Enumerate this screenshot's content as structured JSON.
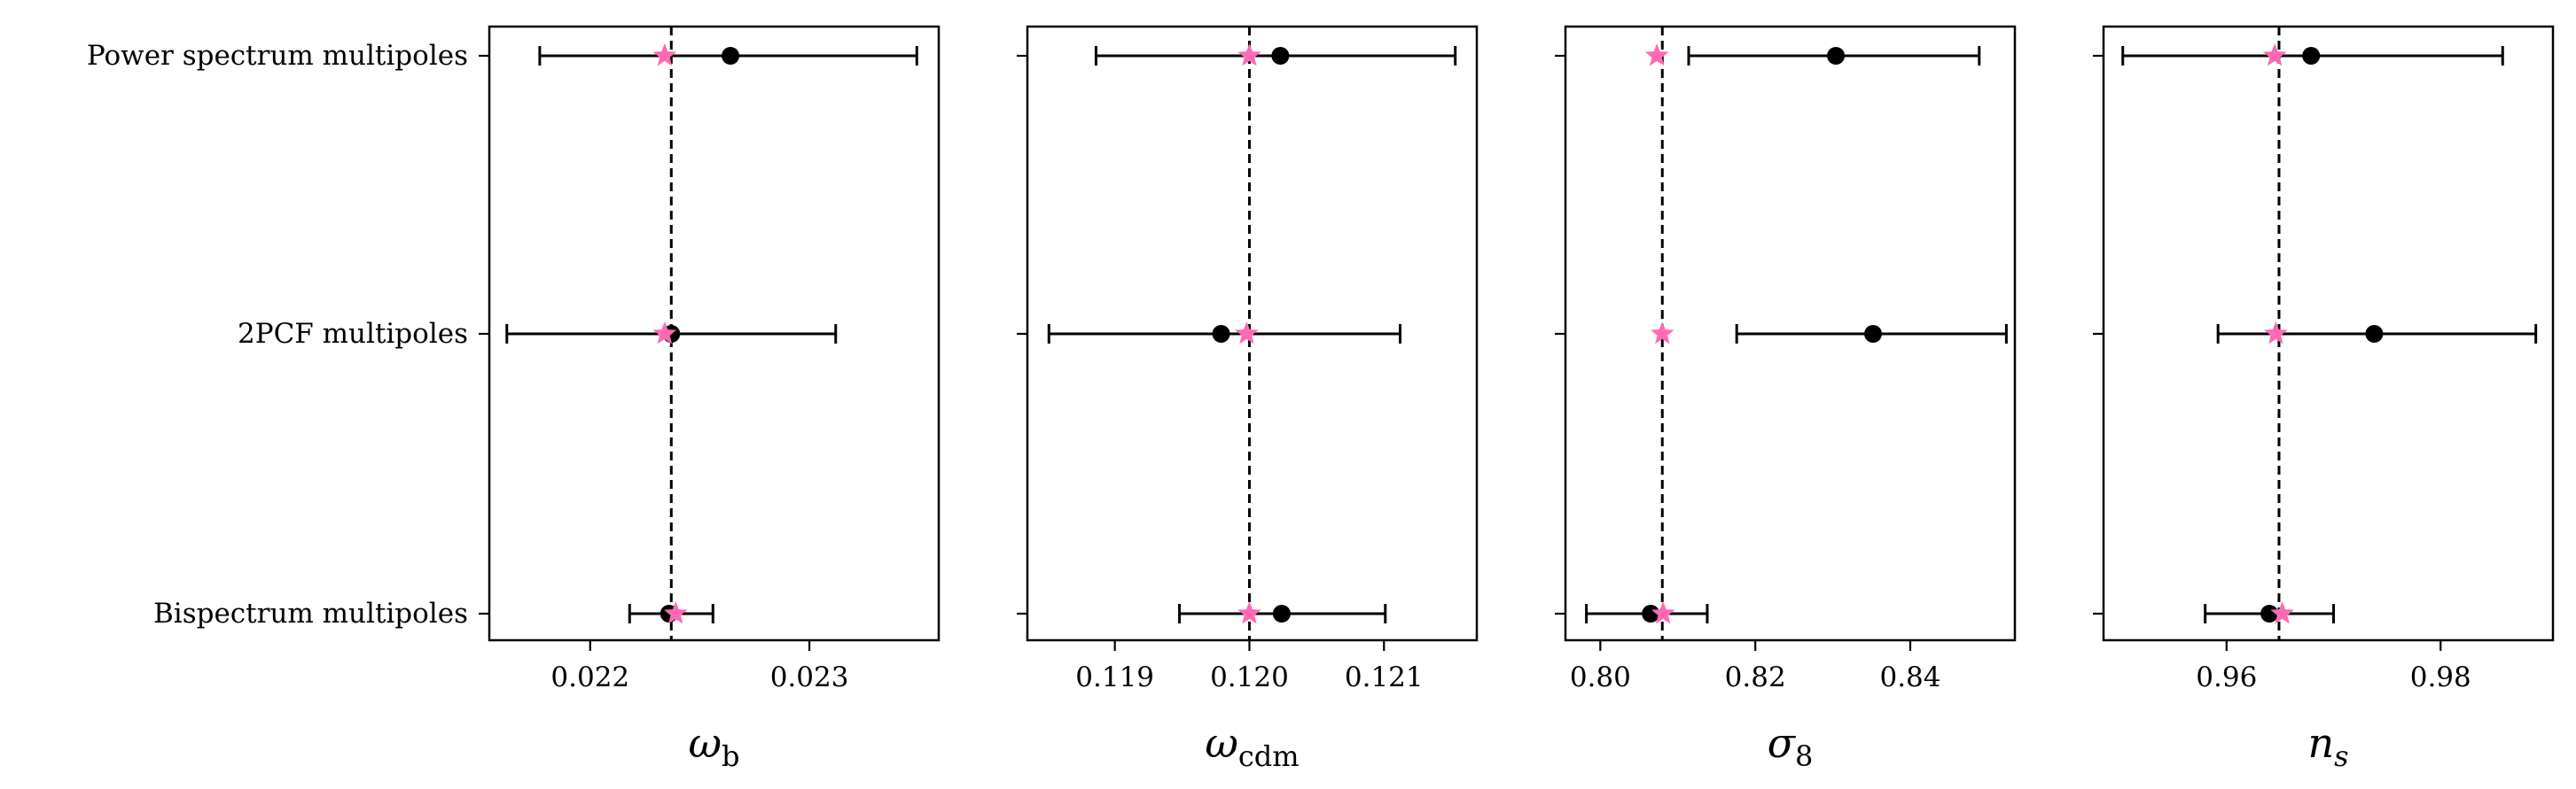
{
  "chart_data": {
    "type": "scatter",
    "categories": [
      "Power spectrum multipoles",
      "2PCF multipoles",
      "Bispectrum multipoles"
    ],
    "colors": {
      "measurement": "#000000",
      "truth": "#ff69b4",
      "fiducial_line": "#000000"
    },
    "panels": [
      {
        "xlabel_base": "ω",
        "xlabel_sub": "b",
        "xlim": [
          0.02154,
          0.02359
        ],
        "xticks": [
          0.022,
          0.023
        ],
        "xtick_labels": [
          "0.022",
          "0.023"
        ],
        "fiducial": 0.02237,
        "measurement": [
          {
            "value": 0.02264,
            "lo": 0.02177,
            "hi": 0.02349
          },
          {
            "value": 0.02237,
            "lo": 0.02162,
            "hi": 0.02312
          },
          {
            "value": 0.02236,
            "lo": 0.02218,
            "hi": 0.02256
          }
        ],
        "truth": [
          0.02234,
          0.02234,
          0.02239
        ]
      },
      {
        "xlabel_base": "ω",
        "xlabel_sub": "cdm",
        "xlim": [
          0.11835,
          0.12169
        ],
        "xticks": [
          0.119,
          0.12,
          0.121
        ],
        "xtick_labels": [
          "0.119",
          "0.120",
          "0.121"
        ],
        "fiducial": 0.12,
        "measurement": [
          {
            "value": 0.12023,
            "lo": 0.11886,
            "hi": 0.12153
          },
          {
            "value": 0.11979,
            "lo": 0.11851,
            "hi": 0.12112
          },
          {
            "value": 0.12024,
            "lo": 0.11948,
            "hi": 0.12101
          }
        ],
        "truth": [
          0.12,
          0.11998,
          0.12
        ]
      },
      {
        "xlabel_base": "σ",
        "xlabel_sub": "8",
        "xlim": [
          0.7955,
          0.8535
        ],
        "xticks": [
          0.8,
          0.82,
          0.84
        ],
        "xtick_labels": [
          "0.80",
          "0.82",
          "0.84"
        ],
        "fiducial": 0.808,
        "measurement": [
          {
            "value": 0.8304,
            "lo": 0.8114,
            "hi": 0.8489
          },
          {
            "value": 0.8352,
            "lo": 0.8176,
            "hi": 0.8524
          },
          {
            "value": 0.8065,
            "lo": 0.7982,
            "hi": 0.8138
          }
        ],
        "truth": [
          0.8073,
          0.808,
          0.8081
        ]
      },
      {
        "xlabel_base": "n",
        "xlabel_sub": "s",
        "xlim": [
          0.9485,
          0.9905
        ],
        "xticks": [
          0.96,
          0.98
        ],
        "xtick_labels": [
          "0.96",
          "0.98"
        ],
        "fiducial": 0.9649,
        "measurement": [
          {
            "value": 0.9679,
            "lo": 0.9503,
            "hi": 0.9858
          },
          {
            "value": 0.9738,
            "lo": 0.9592,
            "hi": 0.9889
          },
          {
            "value": 0.964,
            "lo": 0.958,
            "hi": 0.97
          }
        ],
        "truth": [
          0.9645,
          0.9646,
          0.9652
        ]
      }
    ]
  }
}
